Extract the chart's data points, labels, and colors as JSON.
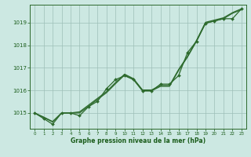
{
  "title": "Graphe pression niveau de la mer (hPa)",
  "bg_color": "#cce8e2",
  "plot_bg_color": "#cce8e2",
  "line_color": "#2d6a2d",
  "grid_color": "#9dbfb8",
  "text_color": "#1a5c1a",
  "xlim": [
    -0.5,
    23.5
  ],
  "ylim": [
    1014.3,
    1019.8
  ],
  "yticks": [
    1015,
    1016,
    1017,
    1018,
    1019
  ],
  "xticks": [
    0,
    1,
    2,
    3,
    4,
    5,
    6,
    7,
    8,
    9,
    10,
    11,
    12,
    13,
    14,
    15,
    16,
    17,
    18,
    19,
    20,
    21,
    22,
    23
  ],
  "s1_x": [
    0,
    1,
    2,
    3,
    4,
    5,
    6,
    7,
    8,
    9,
    10,
    11,
    12,
    13,
    14,
    15,
    16,
    17,
    18,
    19,
    20,
    21,
    22,
    23
  ],
  "s1_y": [
    1015.0,
    1014.82,
    1014.62,
    1015.0,
    1015.0,
    1015.05,
    1015.35,
    1015.65,
    1015.95,
    1016.35,
    1016.72,
    1016.52,
    1016.02,
    1016.02,
    1016.22,
    1016.22,
    1016.92,
    1017.52,
    1018.22,
    1019.02,
    1019.12,
    1019.22,
    1019.45,
    1019.62
  ],
  "s2_x": [
    0,
    1,
    2,
    3,
    4,
    5,
    6,
    7,
    8,
    9,
    10,
    11,
    12,
    13,
    14,
    15,
    16,
    17,
    18,
    19,
    20,
    21,
    22,
    23
  ],
  "s2_y": [
    1015.0,
    1014.8,
    1014.6,
    1015.0,
    1015.0,
    1015.0,
    1015.3,
    1015.6,
    1015.9,
    1016.3,
    1016.68,
    1016.48,
    1015.98,
    1015.98,
    1016.18,
    1016.18,
    1016.88,
    1017.48,
    1018.18,
    1018.98,
    1019.08,
    1019.18,
    1019.42,
    1019.58
  ],
  "s3_x": [
    0,
    1,
    2,
    3,
    4,
    5,
    6,
    7,
    8,
    9,
    10,
    11,
    12,
    13,
    14,
    15,
    16,
    17,
    18,
    19,
    20,
    21,
    22,
    23
  ],
  "s3_y": [
    1015.0,
    1014.75,
    1014.5,
    1015.0,
    1015.0,
    1014.88,
    1015.28,
    1015.52,
    1016.08,
    1016.48,
    1016.65,
    1016.48,
    1015.98,
    1015.98,
    1016.28,
    1016.28,
    1016.65,
    1017.68,
    1018.18,
    1018.98,
    1019.08,
    1019.18,
    1019.18,
    1019.62
  ]
}
